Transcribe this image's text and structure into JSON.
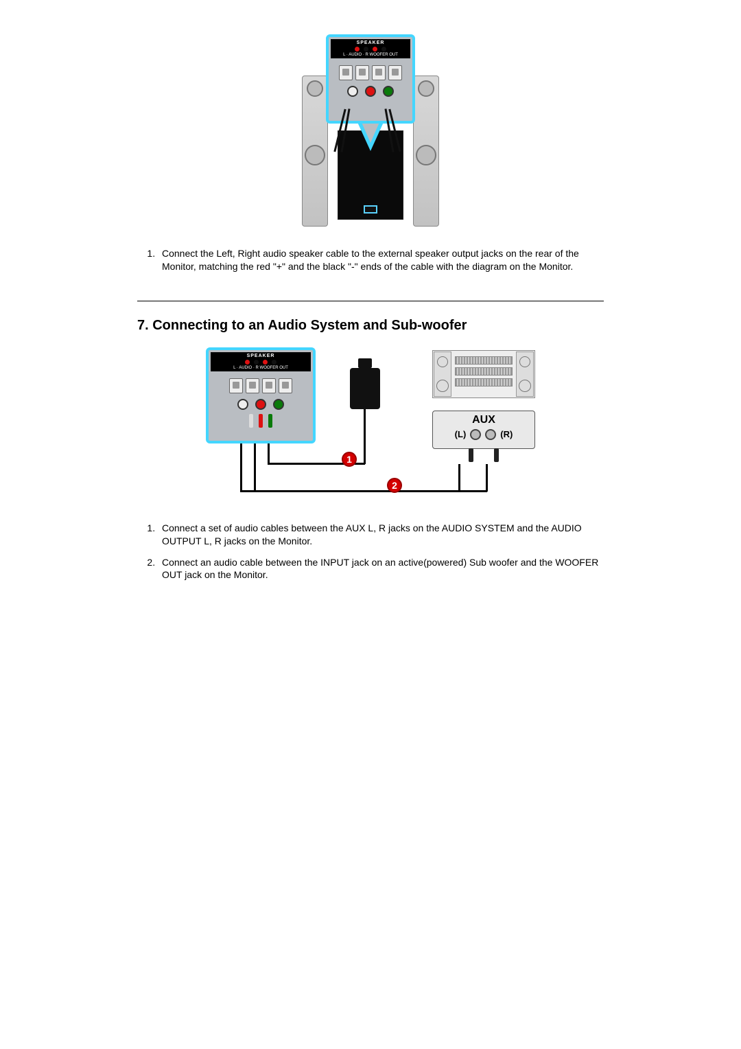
{
  "section1": {
    "panel": {
      "speaker_label": "SPEAKER",
      "audio_label": "L · AUDIO · R  WOOFER OUT"
    },
    "instructions": [
      "Connect the Left, Right audio speaker cable to the external speaker output jacks on the rear of the Monitor, matching the red \"+\" and the black \"-\" ends of the cable with the diagram on the Monitor."
    ]
  },
  "section2": {
    "heading": "7. Connecting to an Audio System and Sub-woofer",
    "panel": {
      "speaker_label": "SPEAKER",
      "audio_label": "L · AUDIO · R  WOOFER OUT"
    },
    "aux": {
      "title": "AUX",
      "left": "(L)",
      "right": "(R)"
    },
    "badges": {
      "n1": "1",
      "n2": "2"
    },
    "instructions": [
      "Connect a set of audio cables between the AUX L, R jacks on the AUDIO SYSTEM and the AUDIO OUTPUT L, R jacks on the Monitor.",
      "Connect an audio cable between the INPUT jack on an active(powered) Sub woofer and the WOOFER OUT jack on the Monitor."
    ]
  },
  "colors": {
    "callout_border": "#44d6ff",
    "panel_bg": "#b9bdc2",
    "badge_bg": "#d40000",
    "jack_red": "#d11",
    "jack_green": "#0a7a0a"
  }
}
